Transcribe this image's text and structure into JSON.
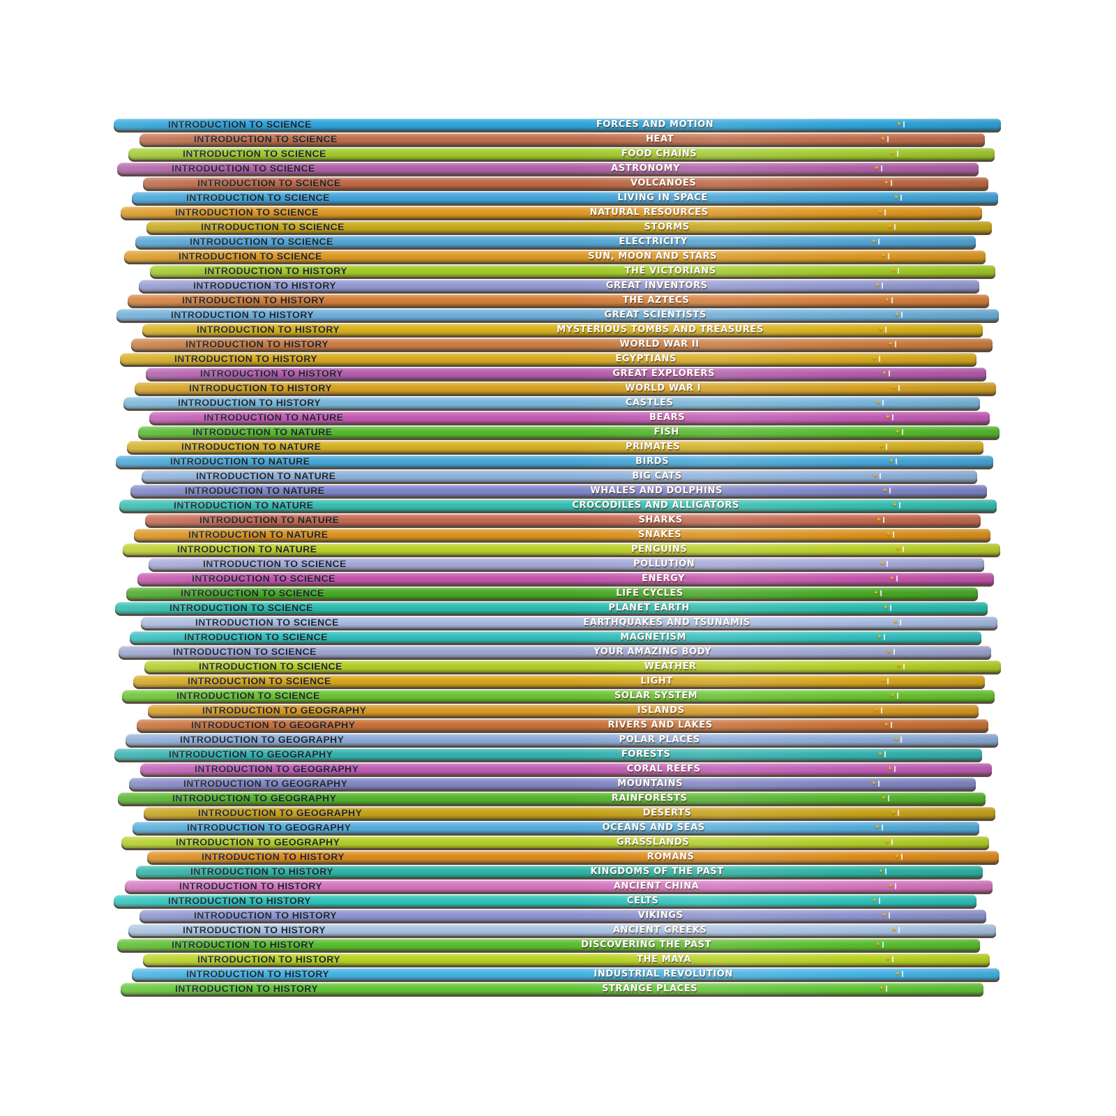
{
  "page": {
    "background": "#ffffff",
    "description_logo": "publisher-logo"
  },
  "books": [
    {
      "series": "INTRODUCTION TO SCIENCE",
      "title": "FORCES AND MOTION",
      "color": "#30a5da"
    },
    {
      "series": "INTRODUCTION TO SCIENCE",
      "title": "HEAT",
      "color": "#c2704d"
    },
    {
      "series": "INTRODUCTION TO SCIENCE",
      "title": "FOOD CHAINS",
      "color": "#a3cb2f"
    },
    {
      "series": "INTRODUCTION TO SCIENCE",
      "title": "ASTRONOMY",
      "color": "#b163a7"
    },
    {
      "series": "INTRODUCTION TO SCIENCE",
      "title": "VOLCANOES",
      "color": "#c06b48"
    },
    {
      "series": "INTRODUCTION TO SCIENCE",
      "title": "LIVING IN SPACE",
      "color": "#43a6da"
    },
    {
      "series": "INTRODUCTION TO SCIENCE",
      "title": "NATURAL RESOURCES",
      "color": "#df9a25"
    },
    {
      "series": "INTRODUCTION TO SCIENCE",
      "title": "STORMS",
      "color": "#c9a91d"
    },
    {
      "series": "INTRODUCTION TO SCIENCE",
      "title": "ELECTRICITY",
      "color": "#55a6d6"
    },
    {
      "series": "INTRODUCTION TO SCIENCE",
      "title": "SUN, MOON AND STARS",
      "color": "#dd9b26"
    },
    {
      "series": "INTRODUCTION TO HISTORY",
      "title": "THE VICTORIANS",
      "color": "#a3cb2a"
    },
    {
      "series": "INTRODUCTION TO HISTORY",
      "title": "GREAT INVENTORS",
      "color": "#959cd2"
    },
    {
      "series": "INTRODUCTION TO HISTORY",
      "title": "THE AZTECS",
      "color": "#d5813d"
    },
    {
      "series": "INTRODUCTION TO HISTORY",
      "title": "GREAT SCIENTISTS",
      "color": "#6fb0da"
    },
    {
      "series": "INTRODUCTION TO HISTORY",
      "title": "MYSTERIOUS TOMBS AND TREASURES",
      "color": "#d9b31f"
    },
    {
      "series": "INTRODUCTION TO HISTORY",
      "title": "WORLD WAR II",
      "color": "#cb7f45"
    },
    {
      "series": "INTRODUCTION TO HISTORY",
      "title": "EGYPTIANS",
      "color": "#d9ad20"
    },
    {
      "series": "INTRODUCTION TO HISTORY",
      "title": "GREAT EXPLORERS",
      "color": "#b55fae"
    },
    {
      "series": "INTRODUCTION TO HISTORY",
      "title": "WORLD WAR I",
      "color": "#d7a324"
    },
    {
      "series": "INTRODUCTION TO HISTORY",
      "title": "CASTLES",
      "color": "#7cb8dc"
    },
    {
      "series": "INTRODUCTION TO NATURE",
      "title": "BEARS",
      "color": "#c55eb6"
    },
    {
      "series": "INTRODUCTION TO NATURE",
      "title": "FISH",
      "color": "#59ba31"
    },
    {
      "series": "INTRODUCTION TO NATURE",
      "title": "PRIMATES",
      "color": "#d5b226"
    },
    {
      "series": "INTRODUCTION TO NATURE",
      "title": "BIRDS",
      "color": "#4aa9da"
    },
    {
      "series": "INTRODUCTION TO NATURE",
      "title": "BIG CATS",
      "color": "#92b4dc"
    },
    {
      "series": "INTRODUCTION TO NATURE",
      "title": "WHALES AND DOLPHINS",
      "color": "#8287c9"
    },
    {
      "series": "INTRODUCTION TO NATURE",
      "title": "CROCODILES AND ALLIGATORS",
      "color": "#39bfb2"
    },
    {
      "series": "INTRODUCTION TO NATURE",
      "title": "SHARKS",
      "color": "#c66b53"
    },
    {
      "series": "INTRODUCTION TO NATURE",
      "title": "SNAKES",
      "color": "#dd9521"
    },
    {
      "series": "INTRODUCTION TO NATURE",
      "title": "PENGUINS",
      "color": "#bdd12c"
    },
    {
      "series": "INTRODUCTION TO SCIENCE",
      "title": "POLLUTION",
      "color": "#a6abd9"
    },
    {
      "series": "INTRODUCTION TO SCIENCE",
      "title": "ENERGY",
      "color": "#c657af"
    },
    {
      "series": "INTRODUCTION TO SCIENCE",
      "title": "LIFE CYCLES",
      "color": "#4aab28"
    },
    {
      "series": "INTRODUCTION TO SCIENCE",
      "title": "PLANET EARTH",
      "color": "#2dbdae"
    },
    {
      "series": "INTRODUCTION TO SCIENCE",
      "title": "EARTHQUAKES AND TSUNAMIS",
      "color": "#aabde2"
    },
    {
      "series": "INTRODUCTION TO SCIENCE",
      "title": "MAGNETISM",
      "color": "#35bfbf"
    },
    {
      "series": "INTRODUCTION TO SCIENCE",
      "title": "YOUR AMAZING BODY",
      "color": "#a0a8d2"
    },
    {
      "series": "INTRODUCTION TO SCIENCE",
      "title": "WEATHER",
      "color": "#b5cf2b"
    },
    {
      "series": "INTRODUCTION TO SCIENCE",
      "title": "LIGHT",
      "color": "#d8a81f"
    },
    {
      "series": "INTRODUCTION TO SCIENCE",
      "title": "SOLAR SYSTEM",
      "color": "#6bc531"
    },
    {
      "series": "INTRODUCTION TO GEOGRAPHY",
      "title": "ISLANDS",
      "color": "#d99c27"
    },
    {
      "series": "INTRODUCTION TO GEOGRAPHY",
      "title": "RIVERS AND LAKES",
      "color": "#c97239"
    },
    {
      "series": "INTRODUCTION TO GEOGRAPHY",
      "title": "POLAR PLACES",
      "color": "#8fadd9"
    },
    {
      "series": "INTRODUCTION TO GEOGRAPHY",
      "title": "FORESTS",
      "color": "#38b4b2"
    },
    {
      "series": "INTRODUCTION TO GEOGRAPHY",
      "title": "CORAL REEFS",
      "color": "#c260b6"
    },
    {
      "series": "INTRODUCTION TO GEOGRAPHY",
      "title": "MOUNTAINS",
      "color": "#8489c5"
    },
    {
      "series": "INTRODUCTION TO GEOGRAPHY",
      "title": "RAINFORESTS",
      "color": "#57b62f"
    },
    {
      "series": "INTRODUCTION TO GEOGRAPHY",
      "title": "DESERTS",
      "color": "#c8a41d"
    },
    {
      "series": "INTRODUCTION TO GEOGRAPHY",
      "title": "OCEANS AND SEAS",
      "color": "#57afdd"
    },
    {
      "series": "INTRODUCTION TO GEOGRAPHY",
      "title": "GRASSLANDS",
      "color": "#b6d02a"
    },
    {
      "series": "INTRODUCTION TO HISTORY",
      "title": "ROMANS",
      "color": "#de8e1f"
    },
    {
      "series": "INTRODUCTION TO HISTORY",
      "title": "KINGDOMS OF THE PAST",
      "color": "#30b5a6"
    },
    {
      "series": "INTRODUCTION TO HISTORY",
      "title": "ANCIENT CHINA",
      "color": "#d677c1"
    },
    {
      "series": "INTRODUCTION TO HISTORY",
      "title": "CELTS",
      "color": "#30c5bd"
    },
    {
      "series": "INTRODUCTION TO HISTORY",
      "title": "VIKINGS",
      "color": "#9096d1"
    },
    {
      "series": "INTRODUCTION TO HISTORY",
      "title": "ANCIENT GREEKS",
      "color": "#abc5e5"
    },
    {
      "series": "INTRODUCTION TO HISTORY",
      "title": "DISCOVERING THE PAST",
      "color": "#5dbf31"
    },
    {
      "series": "INTRODUCTION TO HISTORY",
      "title": "THE MAYA",
      "color": "#b9d424"
    },
    {
      "series": "INTRODUCTION TO HISTORY",
      "title": "INDUSTRIAL REVOLUTION",
      "color": "#48b5e5"
    },
    {
      "series": "INTRODUCTION TO HISTORY",
      "title": "STRANGE PLACES",
      "color": "#64c739"
    }
  ],
  "logo": {
    "glyph": "✦",
    "color": "#f3b61b"
  }
}
